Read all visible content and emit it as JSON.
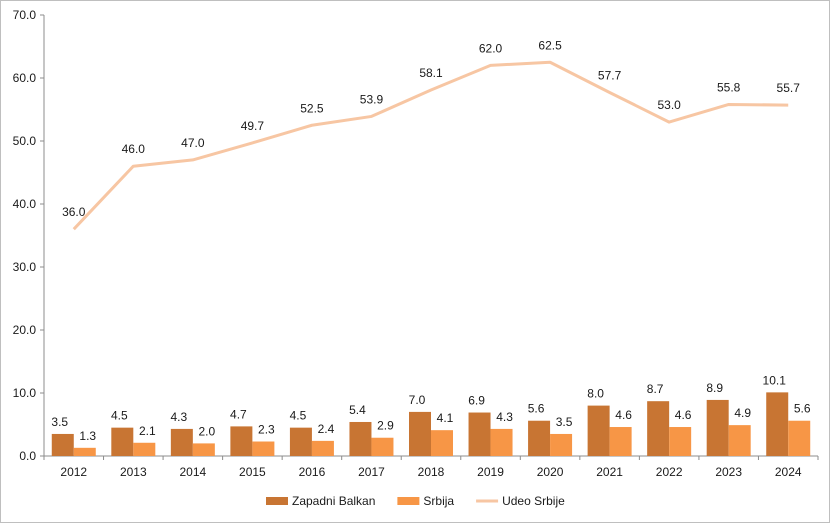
{
  "chart_data": {
    "type": "bar",
    "categories": [
      "2012",
      "2013",
      "2014",
      "2015",
      "2016",
      "2017",
      "2018",
      "2019",
      "2020",
      "2021",
      "2022",
      "2023",
      "2024"
    ],
    "series": [
      {
        "name": "Zapadni Balkan",
        "kind": "bar",
        "color": "#c87533",
        "values": [
          3.5,
          4.5,
          4.3,
          4.7,
          4.5,
          5.4,
          7.0,
          6.9,
          5.6,
          8.0,
          8.7,
          8.9,
          10.1
        ]
      },
      {
        "name": "Srbija",
        "kind": "bar",
        "color": "#f79646",
        "values": [
          1.3,
          2.1,
          2.0,
          2.3,
          2.4,
          2.9,
          4.1,
          4.3,
          3.5,
          4.6,
          4.6,
          4.9,
          5.6
        ]
      },
      {
        "name": "Udeo Srbije",
        "kind": "line",
        "color": "#f7c6a3",
        "values": [
          36.0,
          46.0,
          47.0,
          49.7,
          52.5,
          53.9,
          58.1,
          62.0,
          62.5,
          57.7,
          53.0,
          55.8,
          55.7
        ]
      }
    ],
    "ylim": [
      0,
      70
    ],
    "yticks": [
      "0.0",
      "10.0",
      "20.0",
      "30.0",
      "40.0",
      "50.0",
      "60.0",
      "70.0"
    ],
    "grid": false,
    "legend_position": "bottom",
    "value_format_decimals": 1
  }
}
